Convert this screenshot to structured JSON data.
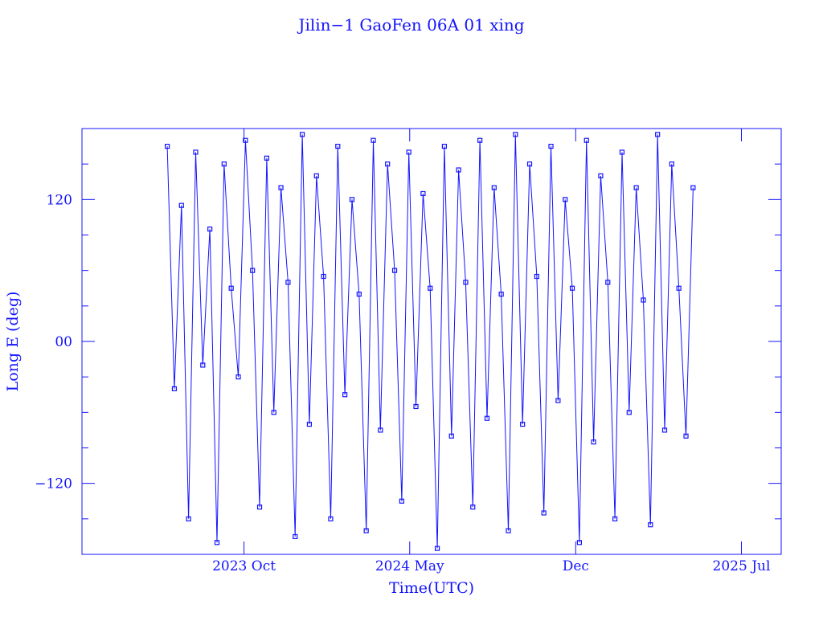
{
  "chart_data": {
    "type": "line",
    "title": "Jilin−1 GaoFen 06A 01 xing",
    "xlabel": "Time(UTC)",
    "ylabel": "Long E (deg)",
    "color": "#1414ff",
    "xlim": [
      2023.18,
      2025.64
    ],
    "xticks": [
      {
        "value": 2023.75,
        "label": "2023 Oct"
      },
      {
        "value": 2024.333,
        "label": "2024 May"
      },
      {
        "value": 2024.917,
        "label": "Dec"
      },
      {
        "value": 2025.5,
        "label": "2025 Jul"
      }
    ],
    "ylim": [
      -180,
      180
    ],
    "yticks": [
      {
        "value": -120,
        "label": "−120"
      },
      {
        "value": 0,
        "label": "00"
      },
      120
    ],
    "yminorticks": [
      -150,
      -90,
      -60,
      -30,
      30,
      60,
      90,
      150
    ],
    "series": [
      {
        "name": "Long E",
        "x": [
          2023.48,
          2023.505,
          2023.53,
          2023.555,
          2023.58,
          2023.605,
          2023.63,
          2023.655,
          2023.68,
          2023.705,
          2023.73,
          2023.755,
          2023.78,
          2023.805,
          2023.83,
          2023.855,
          2023.88,
          2023.905,
          2023.93,
          2023.955,
          2023.98,
          2024.005,
          2024.03,
          2024.055,
          2024.08,
          2024.105,
          2024.13,
          2024.155,
          2024.18,
          2024.205,
          2024.23,
          2024.255,
          2024.28,
          2024.305,
          2024.33,
          2024.355,
          2024.38,
          2024.405,
          2024.43,
          2024.455,
          2024.48,
          2024.505,
          2024.53,
          2024.555,
          2024.58,
          2024.605,
          2024.63,
          2024.655,
          2024.68,
          2024.705,
          2024.73,
          2024.755,
          2024.78,
          2024.805,
          2024.83,
          2024.855,
          2024.88,
          2024.905,
          2024.93,
          2024.955,
          2024.98,
          2025.005,
          2025.03,
          2025.055,
          2025.08,
          2025.105,
          2025.13,
          2025.155,
          2025.18,
          2025.205,
          2025.23,
          2025.255,
          2025.28,
          2025.305,
          2025.33
        ],
        "values": [
          165,
          -40,
          115,
          -150,
          160,
          -20,
          95,
          -170,
          150,
          45,
          -30,
          170,
          60,
          -140,
          155,
          -60,
          130,
          50,
          -165,
          175,
          -70,
          140,
          55,
          -150,
          165,
          -45,
          120,
          40,
          -160,
          170,
          -75,
          150,
          60,
          -135,
          160,
          -55,
          125,
          45,
          -175,
          165,
          -80,
          145,
          50,
          -140,
          170,
          -65,
          130,
          40,
          -160,
          175,
          -70,
          150,
          55,
          -145,
          165,
          -50,
          120,
          45,
          -170,
          170,
          -85,
          140,
          50,
          -150,
          160,
          -60,
          130,
          35,
          -155,
          175,
          -75,
          150,
          45,
          -80,
          130
        ]
      }
    ]
  }
}
